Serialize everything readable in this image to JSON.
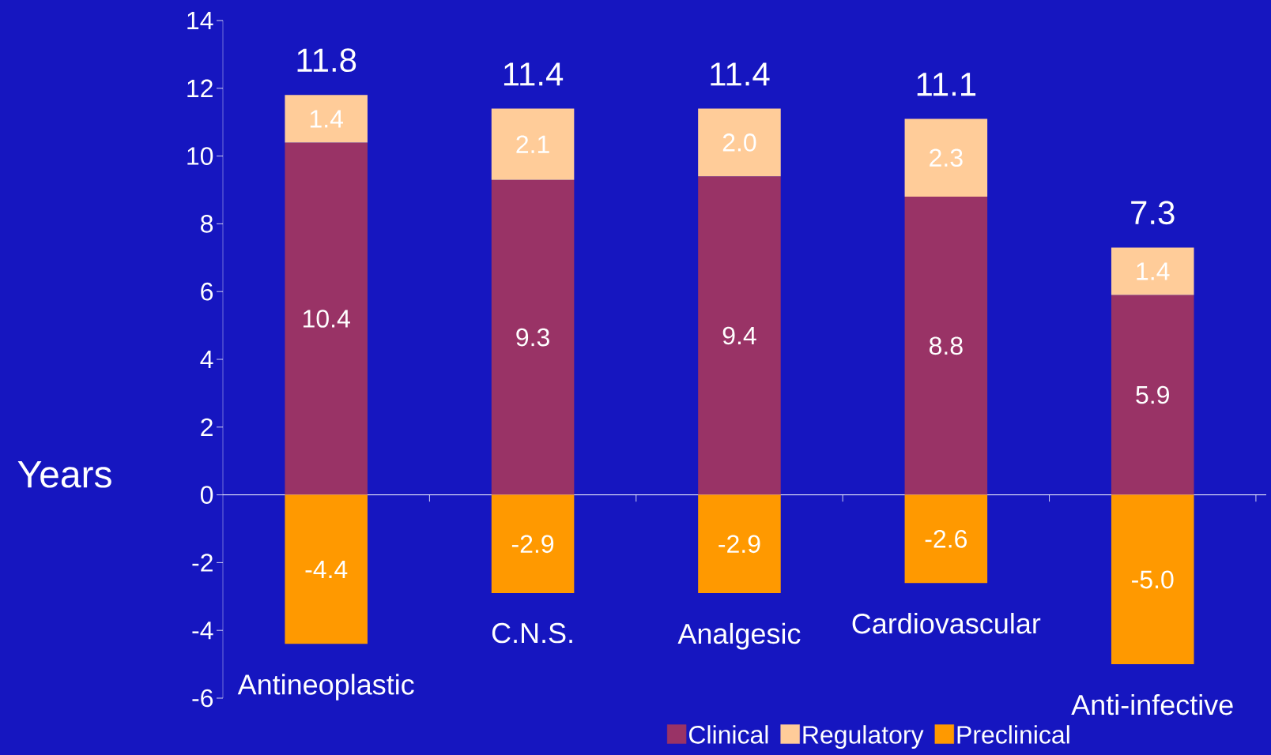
{
  "chart_data": {
    "type": "bar",
    "stacked": true,
    "ylabel": "Years",
    "categories": [
      "Antineoplastic",
      "C.N.S.",
      "Analgesic",
      "Cardiovascular",
      "Anti-infective"
    ],
    "series": [
      {
        "name": "Clinical",
        "color": "#993366",
        "values": [
          10.4,
          9.3,
          9.4,
          8.8,
          5.9
        ],
        "value_labels": [
          "10.4",
          "9.3",
          "9.4",
          "8.8",
          "5.9"
        ]
      },
      {
        "name": "Regulatory",
        "color": "#ffcc99",
        "values": [
          1.4,
          2.1,
          2.0,
          2.3,
          1.4
        ],
        "value_labels": [
          "1.4",
          "2.1",
          "2.0",
          "2.3",
          "1.4"
        ]
      },
      {
        "name": "Preclinical",
        "color": "#ff9900",
        "values": [
          -4.4,
          -2.9,
          -2.9,
          -2.6,
          -5.0
        ],
        "value_labels": [
          "-4.4",
          "-2.9",
          "-2.9",
          "-2.6",
          "-5.0"
        ]
      }
    ],
    "annotations": [
      {
        "text": "11.8",
        "x": "Antineoplastic",
        "y": 11.8
      },
      {
        "text": "11.4",
        "x": "C.N.S.",
        "y": 11.4
      },
      {
        "text": "11.4",
        "x": "Analgesic",
        "y": 11.4
      },
      {
        "text": "11.1",
        "x": "Cardiovascular",
        "y": 11.1
      },
      {
        "text": "7.3",
        "x": "Anti-infective",
        "y": 7.3
      }
    ],
    "legend": "bottom",
    "ylim": [
      -6,
      14
    ],
    "yticks": [
      -6,
      -4,
      -2,
      0,
      2,
      4,
      6,
      8,
      10,
      12,
      14
    ]
  }
}
